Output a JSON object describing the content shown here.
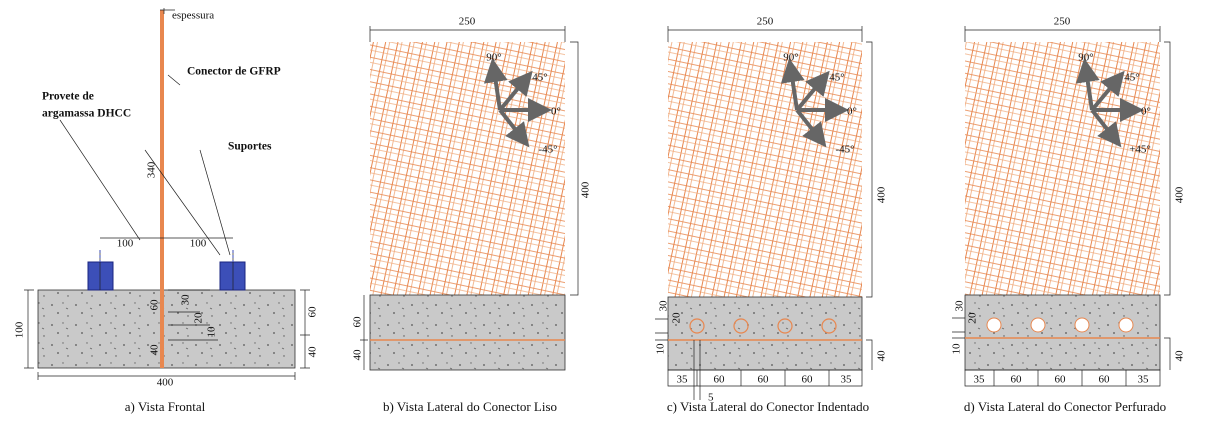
{
  "panels": [
    {
      "caption": "a) Vista Frontal",
      "labels": [
        "espessura",
        "Conector de GFRP",
        "Provete de",
        "argamassa DHCC",
        "Suportes",
        "340",
        "100",
        "100",
        "100",
        "60",
        "60",
        "30",
        "20",
        "10",
        "40",
        "40",
        "400"
      ]
    },
    {
      "caption": "b) Vista Lateral do Conector Liso",
      "labels": [
        "250",
        "90°",
        "45°",
        "0°",
        "-45°",
        "400",
        "60",
        "40"
      ]
    },
    {
      "caption": "c) Vista Lateral do Conector Indentado",
      "labels": [
        "250",
        "90°",
        "45°",
        "0°",
        "-45°",
        "400",
        "30",
        "20",
        "10",
        "40",
        "35",
        "60",
        "60",
        "60",
        "35",
        "5"
      ]
    },
    {
      "caption": "d) Vista Lateral do Conector Perfurado",
      "labels": [
        "250",
        "90°",
        "45°",
        "0°",
        "+45°",
        "400",
        "30",
        "20",
        "10",
        "40",
        "35",
        "60",
        "60",
        "60",
        "35"
      ]
    }
  ]
}
